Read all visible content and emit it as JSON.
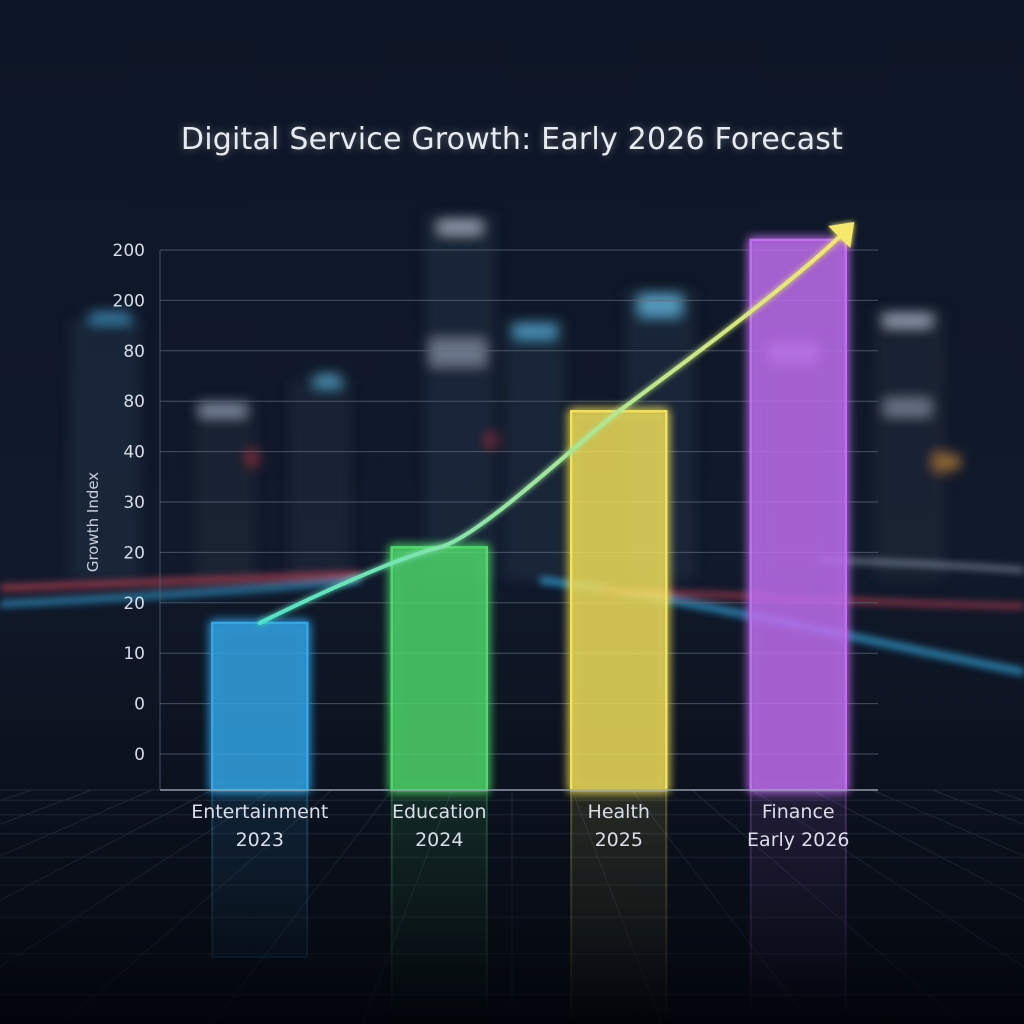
{
  "chart_data": {
    "type": "bar",
    "title": "Digital Service Growth: Early 2026 Forecast",
    "ylabel": "Growth Index",
    "xlabel": "",
    "y_tick_labels": [
      "200",
      "200",
      "80",
      "80",
      "40",
      "30",
      "20",
      "20",
      "10",
      "0",
      "0"
    ],
    "ylim": [
      0,
      10
    ],
    "categories": [
      {
        "name": "Entertainment",
        "period": "2023"
      },
      {
        "name": "Education",
        "period": "2024"
      },
      {
        "name": "Health",
        "period": "2025"
      },
      {
        "name": "Finance",
        "period": "Early 2026"
      }
    ],
    "values": [
      2.6,
      4.1,
      6.8,
      10.2
    ],
    "bar_colors": [
      "#33a6e6",
      "#4fd86a",
      "#f2e15a",
      "#c06ef0"
    ],
    "trend_line": true,
    "trend_color_start": "#4fe3c8",
    "trend_color_end": "#f6e86a",
    "grid": true
  }
}
